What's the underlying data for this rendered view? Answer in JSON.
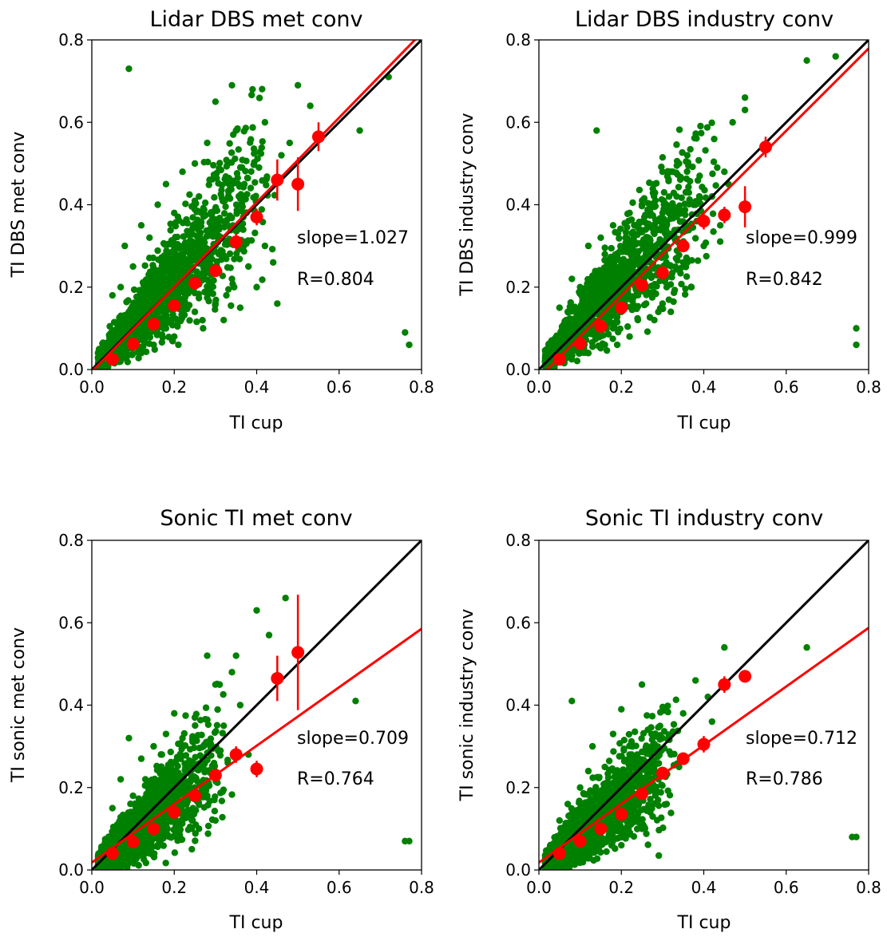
{
  "colors": {
    "scatter": "#008000",
    "binned": "#ff0000",
    "fit": "#ff0000",
    "identity": "#000000"
  },
  "chart_data": [
    {
      "type": "scatter",
      "title": "Lidar DBS met conv",
      "xlabel": "TI cup",
      "ylabel": "TI DBS met conv",
      "xlim": [
        0,
        0.8
      ],
      "ylim": [
        0,
        0.8
      ],
      "xticks": [
        "0.0",
        "0.2",
        "0.4",
        "0.6",
        "0.8"
      ],
      "yticks": [
        "0.0",
        "0.2",
        "0.4",
        "0.6",
        "0.8"
      ],
      "grid": false,
      "annotations": [
        "slope=1.027",
        "R=0.804"
      ],
      "fit": {
        "slope": 1.027,
        "intercept": -0.005
      },
      "scatter_points": {
        "x": [
          0.09,
          0.76,
          0.77,
          0.72,
          0.65,
          0.34,
          0.39,
          0.45,
          0.5,
          0.53,
          0.42,
          0.3,
          0.25,
          0.18,
          0.48,
          0.46,
          0.35,
          0.28,
          0.22,
          0.16,
          0.12,
          0.08,
          0.05,
          0.37,
          0.33,
          0.26,
          0.2,
          0.14,
          0.1,
          0.07,
          0.42,
          0.38,
          0.31,
          0.24,
          0.19,
          0.13,
          0.11,
          0.06,
          0.04,
          0.29,
          0.23,
          0.17,
          0.15,
          0.09,
          0.27,
          0.21,
          0.36,
          0.32,
          0.15,
          0.12,
          0.44,
          0.4,
          0.2,
          0.18,
          0.25,
          0.3,
          0.34,
          0.1,
          0.14,
          0.22
        ],
        "y": [
          0.73,
          0.09,
          0.06,
          0.71,
          0.58,
          0.69,
          0.68,
          0.16,
          0.69,
          0.64,
          0.6,
          0.65,
          0.5,
          0.45,
          0.55,
          0.52,
          0.58,
          0.55,
          0.48,
          0.4,
          0.35,
          0.3,
          0.18,
          0.45,
          0.5,
          0.42,
          0.38,
          0.32,
          0.25,
          0.2,
          0.3,
          0.25,
          0.28,
          0.22,
          0.2,
          0.15,
          0.12,
          0.08,
          0.05,
          0.35,
          0.3,
          0.26,
          0.2,
          0.14,
          0.1,
          0.06,
          0.15,
          0.12,
          0.06,
          0.04,
          0.26,
          0.2,
          0.08,
          0.1,
          0.14,
          0.16,
          0.22,
          0.1,
          0.14,
          0.28
        ]
      },
      "binned": {
        "x": [
          0.05,
          0.1,
          0.15,
          0.2,
          0.25,
          0.3,
          0.35,
          0.4,
          0.45,
          0.5,
          0.55
        ],
        "y": [
          0.025,
          0.062,
          0.11,
          0.155,
          0.21,
          0.24,
          0.31,
          0.37,
          0.46,
          0.45,
          0.565
        ],
        "err": [
          0.005,
          0.005,
          0.008,
          0.01,
          0.012,
          0.015,
          0.02,
          0.02,
          0.05,
          0.065,
          0.035
        ]
      }
    },
    {
      "type": "scatter",
      "title": "Lidar DBS industry conv",
      "xlabel": "TI cup",
      "ylabel": "TI DBS industry conv",
      "xlim": [
        0,
        0.8
      ],
      "ylim": [
        0,
        0.8
      ],
      "xticks": [
        "0.0",
        "0.2",
        "0.4",
        "0.6",
        "0.8"
      ],
      "yticks": [
        "0.0",
        "0.2",
        "0.4",
        "0.6",
        "0.8"
      ],
      "grid": false,
      "annotations": [
        "slope=0.999",
        "R=0.842"
      ],
      "fit": {
        "slope": 0.999,
        "intercept": -0.02
      },
      "scatter_points": {
        "x": [
          0.14,
          0.72,
          0.65,
          0.77,
          0.77,
          0.5,
          0.5,
          0.47,
          0.46,
          0.45,
          0.39,
          0.36,
          0.34,
          0.3,
          0.28,
          0.25,
          0.22,
          0.18,
          0.15,
          0.12,
          0.08,
          0.05,
          0.42,
          0.38,
          0.33,
          0.27,
          0.21,
          0.16,
          0.1,
          0.07,
          0.44,
          0.4,
          0.35,
          0.29,
          0.23,
          0.17,
          0.13,
          0.09,
          0.05,
          0.31,
          0.26,
          0.2,
          0.14,
          0.11,
          0.24,
          0.19,
          0.37,
          0.32,
          0.16,
          0.12,
          0.28,
          0.22,
          0.18,
          0.2,
          0.26,
          0.3
        ],
        "y": [
          0.58,
          0.76,
          0.75,
          0.1,
          0.06,
          0.66,
          0.63,
          0.6,
          0.45,
          0.48,
          0.47,
          0.52,
          0.5,
          0.48,
          0.45,
          0.4,
          0.38,
          0.35,
          0.32,
          0.3,
          0.22,
          0.15,
          0.42,
          0.4,
          0.38,
          0.35,
          0.32,
          0.28,
          0.2,
          0.14,
          0.35,
          0.3,
          0.26,
          0.24,
          0.22,
          0.18,
          0.15,
          0.1,
          0.06,
          0.2,
          0.16,
          0.14,
          0.1,
          0.08,
          0.12,
          0.06,
          0.2,
          0.14,
          0.06,
          0.04,
          0.12,
          0.08,
          0.1,
          0.26,
          0.28,
          0.16
        ]
      },
      "binned": {
        "x": [
          0.05,
          0.1,
          0.15,
          0.2,
          0.25,
          0.3,
          0.35,
          0.4,
          0.45,
          0.5,
          0.55
        ],
        "y": [
          0.025,
          0.063,
          0.105,
          0.15,
          0.205,
          0.235,
          0.3,
          0.36,
          0.375,
          0.395,
          0.54
        ],
        "err": [
          0.005,
          0.005,
          0.008,
          0.01,
          0.012,
          0.015,
          0.015,
          0.02,
          0.02,
          0.05,
          0.025
        ]
      }
    },
    {
      "type": "scatter",
      "title": "Sonic TI met conv",
      "xlabel": "TI cup",
      "ylabel": "TI sonic met conv",
      "xlim": [
        0,
        0.8
      ],
      "ylim": [
        0,
        0.8
      ],
      "xticks": [
        "0.0",
        "0.2",
        "0.4",
        "0.6",
        "0.8"
      ],
      "yticks": [
        "0.0",
        "0.2",
        "0.4",
        "0.6",
        "0.8"
      ],
      "grid": false,
      "annotations": [
        "slope=0.709",
        "R=0.764"
      ],
      "fit": {
        "slope": 0.709,
        "intercept": 0.018
      },
      "scatter_points": {
        "x": [
          0.47,
          0.4,
          0.43,
          0.35,
          0.64,
          0.76,
          0.77,
          0.28,
          0.34,
          0.3,
          0.25,
          0.2,
          0.18,
          0.15,
          0.12,
          0.09,
          0.07,
          0.05,
          0.36,
          0.32,
          0.22,
          0.17,
          0.13,
          0.1,
          0.08,
          0.38,
          0.33,
          0.27,
          0.24,
          0.19,
          0.14,
          0.11,
          0.06,
          0.3,
          0.26,
          0.21,
          0.16,
          0.12,
          0.23,
          0.18,
          0.28,
          0.14,
          0.1,
          0.2,
          0.25
        ],
        "y": [
          0.66,
          0.63,
          0.57,
          0.52,
          0.41,
          0.07,
          0.07,
          0.52,
          0.48,
          0.45,
          0.37,
          0.38,
          0.33,
          0.3,
          0.27,
          0.32,
          0.22,
          0.15,
          0.4,
          0.35,
          0.32,
          0.28,
          0.22,
          0.18,
          0.12,
          0.28,
          0.26,
          0.25,
          0.24,
          0.2,
          0.18,
          0.14,
          0.08,
          0.12,
          0.1,
          0.08,
          0.06,
          0.04,
          0.16,
          0.12,
          0.18,
          0.08,
          0.06,
          0.22,
          0.2
        ]
      },
      "binned": {
        "x": [
          0.05,
          0.1,
          0.15,
          0.2,
          0.25,
          0.3,
          0.35,
          0.4,
          0.45,
          0.5
        ],
        "y": [
          0.04,
          0.068,
          0.1,
          0.14,
          0.18,
          0.23,
          0.28,
          0.245,
          0.465,
          0.528
        ],
        "err": [
          0.005,
          0.005,
          0.008,
          0.01,
          0.012,
          0.015,
          0.02,
          0.02,
          0.055,
          0.14
        ]
      }
    },
    {
      "type": "scatter",
      "title": "Sonic TI industry conv",
      "xlabel": "TI cup",
      "ylabel": "TI sonic industry conv",
      "xlim": [
        0,
        0.8
      ],
      "ylim": [
        0,
        0.8
      ],
      "xticks": [
        "0.0",
        "0.2",
        "0.4",
        "0.6",
        "0.8"
      ],
      "yticks": [
        "0.0",
        "0.2",
        "0.4",
        "0.6",
        "0.8"
      ],
      "grid": false,
      "annotations": [
        "slope=0.712",
        "R=0.786"
      ],
      "fit": {
        "slope": 0.712,
        "intercept": 0.018
      },
      "scatter_points": {
        "x": [
          0.45,
          0.65,
          0.08,
          0.25,
          0.2,
          0.77,
          0.76,
          0.18,
          0.13,
          0.38,
          0.41,
          0.42,
          0.35,
          0.3,
          0.28,
          0.32,
          0.22,
          0.16,
          0.12,
          0.1,
          0.07,
          0.05,
          0.26,
          0.24,
          0.19,
          0.15,
          0.11,
          0.09,
          0.06,
          0.34,
          0.29,
          0.23,
          0.17,
          0.14,
          0.21,
          0.27,
          0.31,
          0.18,
          0.2,
          0.25
        ],
        "y": [
          0.54,
          0.54,
          0.41,
          0.45,
          0.39,
          0.08,
          0.08,
          0.33,
          0.3,
          0.46,
          0.42,
          0.36,
          0.38,
          0.32,
          0.3,
          0.28,
          0.28,
          0.25,
          0.24,
          0.2,
          0.16,
          0.12,
          0.26,
          0.22,
          0.2,
          0.18,
          0.15,
          0.12,
          0.08,
          0.25,
          0.22,
          0.16,
          0.12,
          0.1,
          0.1,
          0.14,
          0.16,
          0.08,
          0.06,
          0.1
        ]
      },
      "binned": {
        "x": [
          0.05,
          0.1,
          0.15,
          0.2,
          0.25,
          0.3,
          0.35,
          0.4,
          0.45,
          0.5
        ],
        "y": [
          0.04,
          0.07,
          0.1,
          0.135,
          0.185,
          0.235,
          0.27,
          0.305,
          0.45,
          0.47
        ],
        "err": [
          0.005,
          0.005,
          0.008,
          0.01,
          0.012,
          0.015,
          0.015,
          0.02,
          0.02,
          0.01
        ]
      }
    }
  ]
}
